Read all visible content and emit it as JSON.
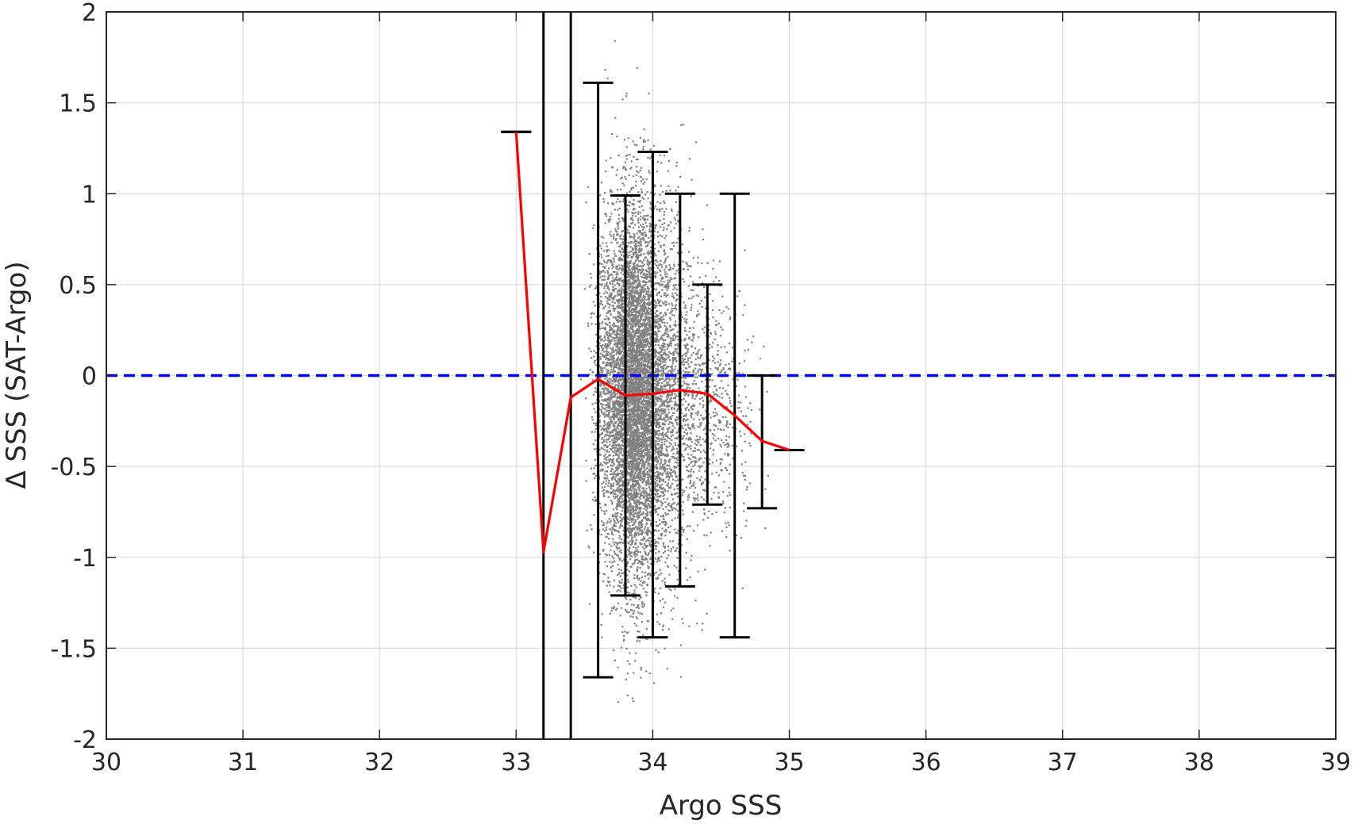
{
  "chart_data": {
    "type": "scatter",
    "xlabel": "Argo SSS",
    "ylabel": "Δ SSS (SAT-Argo)",
    "xlim": [
      30,
      39
    ],
    "ylim": [
      -2,
      2
    ],
    "x_ticks": [
      "30",
      "31",
      "32",
      "33",
      "34",
      "35",
      "36",
      "37",
      "38",
      "39"
    ],
    "y_ticks": [
      "2",
      "1.5",
      "1",
      "0.5",
      "0",
      "-0.5",
      "-1",
      "-1.5",
      "-2"
    ],
    "grid": true,
    "legend": "none",
    "series": [
      {
        "kind": "scatter-cloud",
        "color": "#808080",
        "clusters": [
          {
            "x_center": 33.85,
            "x_spread": 0.1,
            "y_center": -0.1,
            "y_spread": 0.5,
            "count": 5200
          },
          {
            "x_center": 34.0,
            "x_spread": 0.14,
            "y_center": -0.12,
            "y_spread": 0.55,
            "count": 2200
          },
          {
            "x_center": 34.25,
            "x_spread": 0.18,
            "y_center": -0.15,
            "y_spread": 0.4,
            "count": 900
          },
          {
            "x_center": 33.65,
            "x_spread": 0.05,
            "y_center": -0.05,
            "y_spread": 0.45,
            "count": 500
          },
          {
            "x_center": 34.55,
            "x_spread": 0.12,
            "y_center": -0.2,
            "y_spread": 0.3,
            "count": 150
          }
        ]
      },
      {
        "kind": "mean-line",
        "color": "#ff0000",
        "x": [
          33.0,
          33.2,
          33.4,
          33.6,
          33.8,
          34.0,
          34.2,
          34.4,
          34.6,
          34.8,
          35.0
        ],
        "y": [
          1.34,
          -0.97,
          -0.12,
          -0.02,
          -0.11,
          -0.1,
          -0.08,
          -0.1,
          -0.22,
          -0.36,
          -0.41
        ]
      },
      {
        "kind": "error-bars",
        "color": "#000000",
        "x": [
          33.0,
          33.2,
          33.4,
          33.6,
          33.8,
          34.0,
          34.2,
          34.4,
          34.6,
          34.8,
          35.0
        ],
        "low": [
          1.34,
          -2.0,
          -2.0,
          -1.66,
          -1.21,
          -1.44,
          -1.16,
          -0.71,
          -1.44,
          -0.73,
          -0.41
        ],
        "high": [
          1.34,
          2.0,
          2.0,
          1.61,
          0.99,
          1.23,
          1.0,
          0.5,
          1.0,
          0.0,
          -0.41
        ]
      },
      {
        "kind": "reference-line",
        "color": "#0000ff",
        "style": "dashed",
        "y": 0
      }
    ]
  }
}
